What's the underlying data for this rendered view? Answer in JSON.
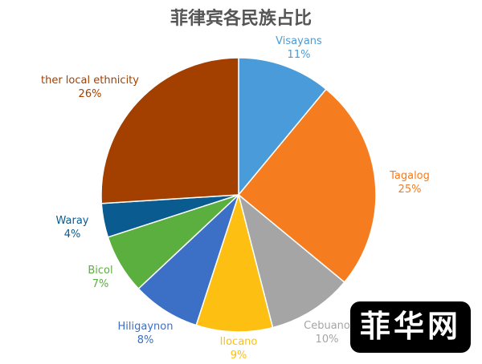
{
  "chart_data": {
    "type": "pie",
    "title": "菲律宾各民族占比",
    "slices": [
      {
        "label": "Visayans",
        "value": 11,
        "value_label": "11%",
        "color": "#4A9BD9"
      },
      {
        "label": "Tagalog",
        "value": 25,
        "value_label": "25%",
        "color": "#F57C1F"
      },
      {
        "label": "Cebuano",
        "value": 10,
        "value_label": "10%",
        "color": "#A5A5A5"
      },
      {
        "label": "Ilocano",
        "value": 9,
        "value_label": "9%",
        "color": "#FDBF11"
      },
      {
        "label": "Hiligaynon",
        "value": 8,
        "value_label": "8%",
        "color": "#3C6FC6"
      },
      {
        "label": "Bicol",
        "value": 7,
        "value_label": "7%",
        "color": "#5BAF3F"
      },
      {
        "label": "Waray",
        "value": 4,
        "value_label": "4%",
        "color": "#0A5B8F"
      },
      {
        "label": "ther local ethnicity",
        "value": 26,
        "value_label": "26%",
        "color": "#A34000"
      }
    ],
    "start_angle": "12 o'clock",
    "direction": "clockwise",
    "legend": "none"
  },
  "watermark": {
    "text": "菲华网",
    "color": "#000000"
  }
}
